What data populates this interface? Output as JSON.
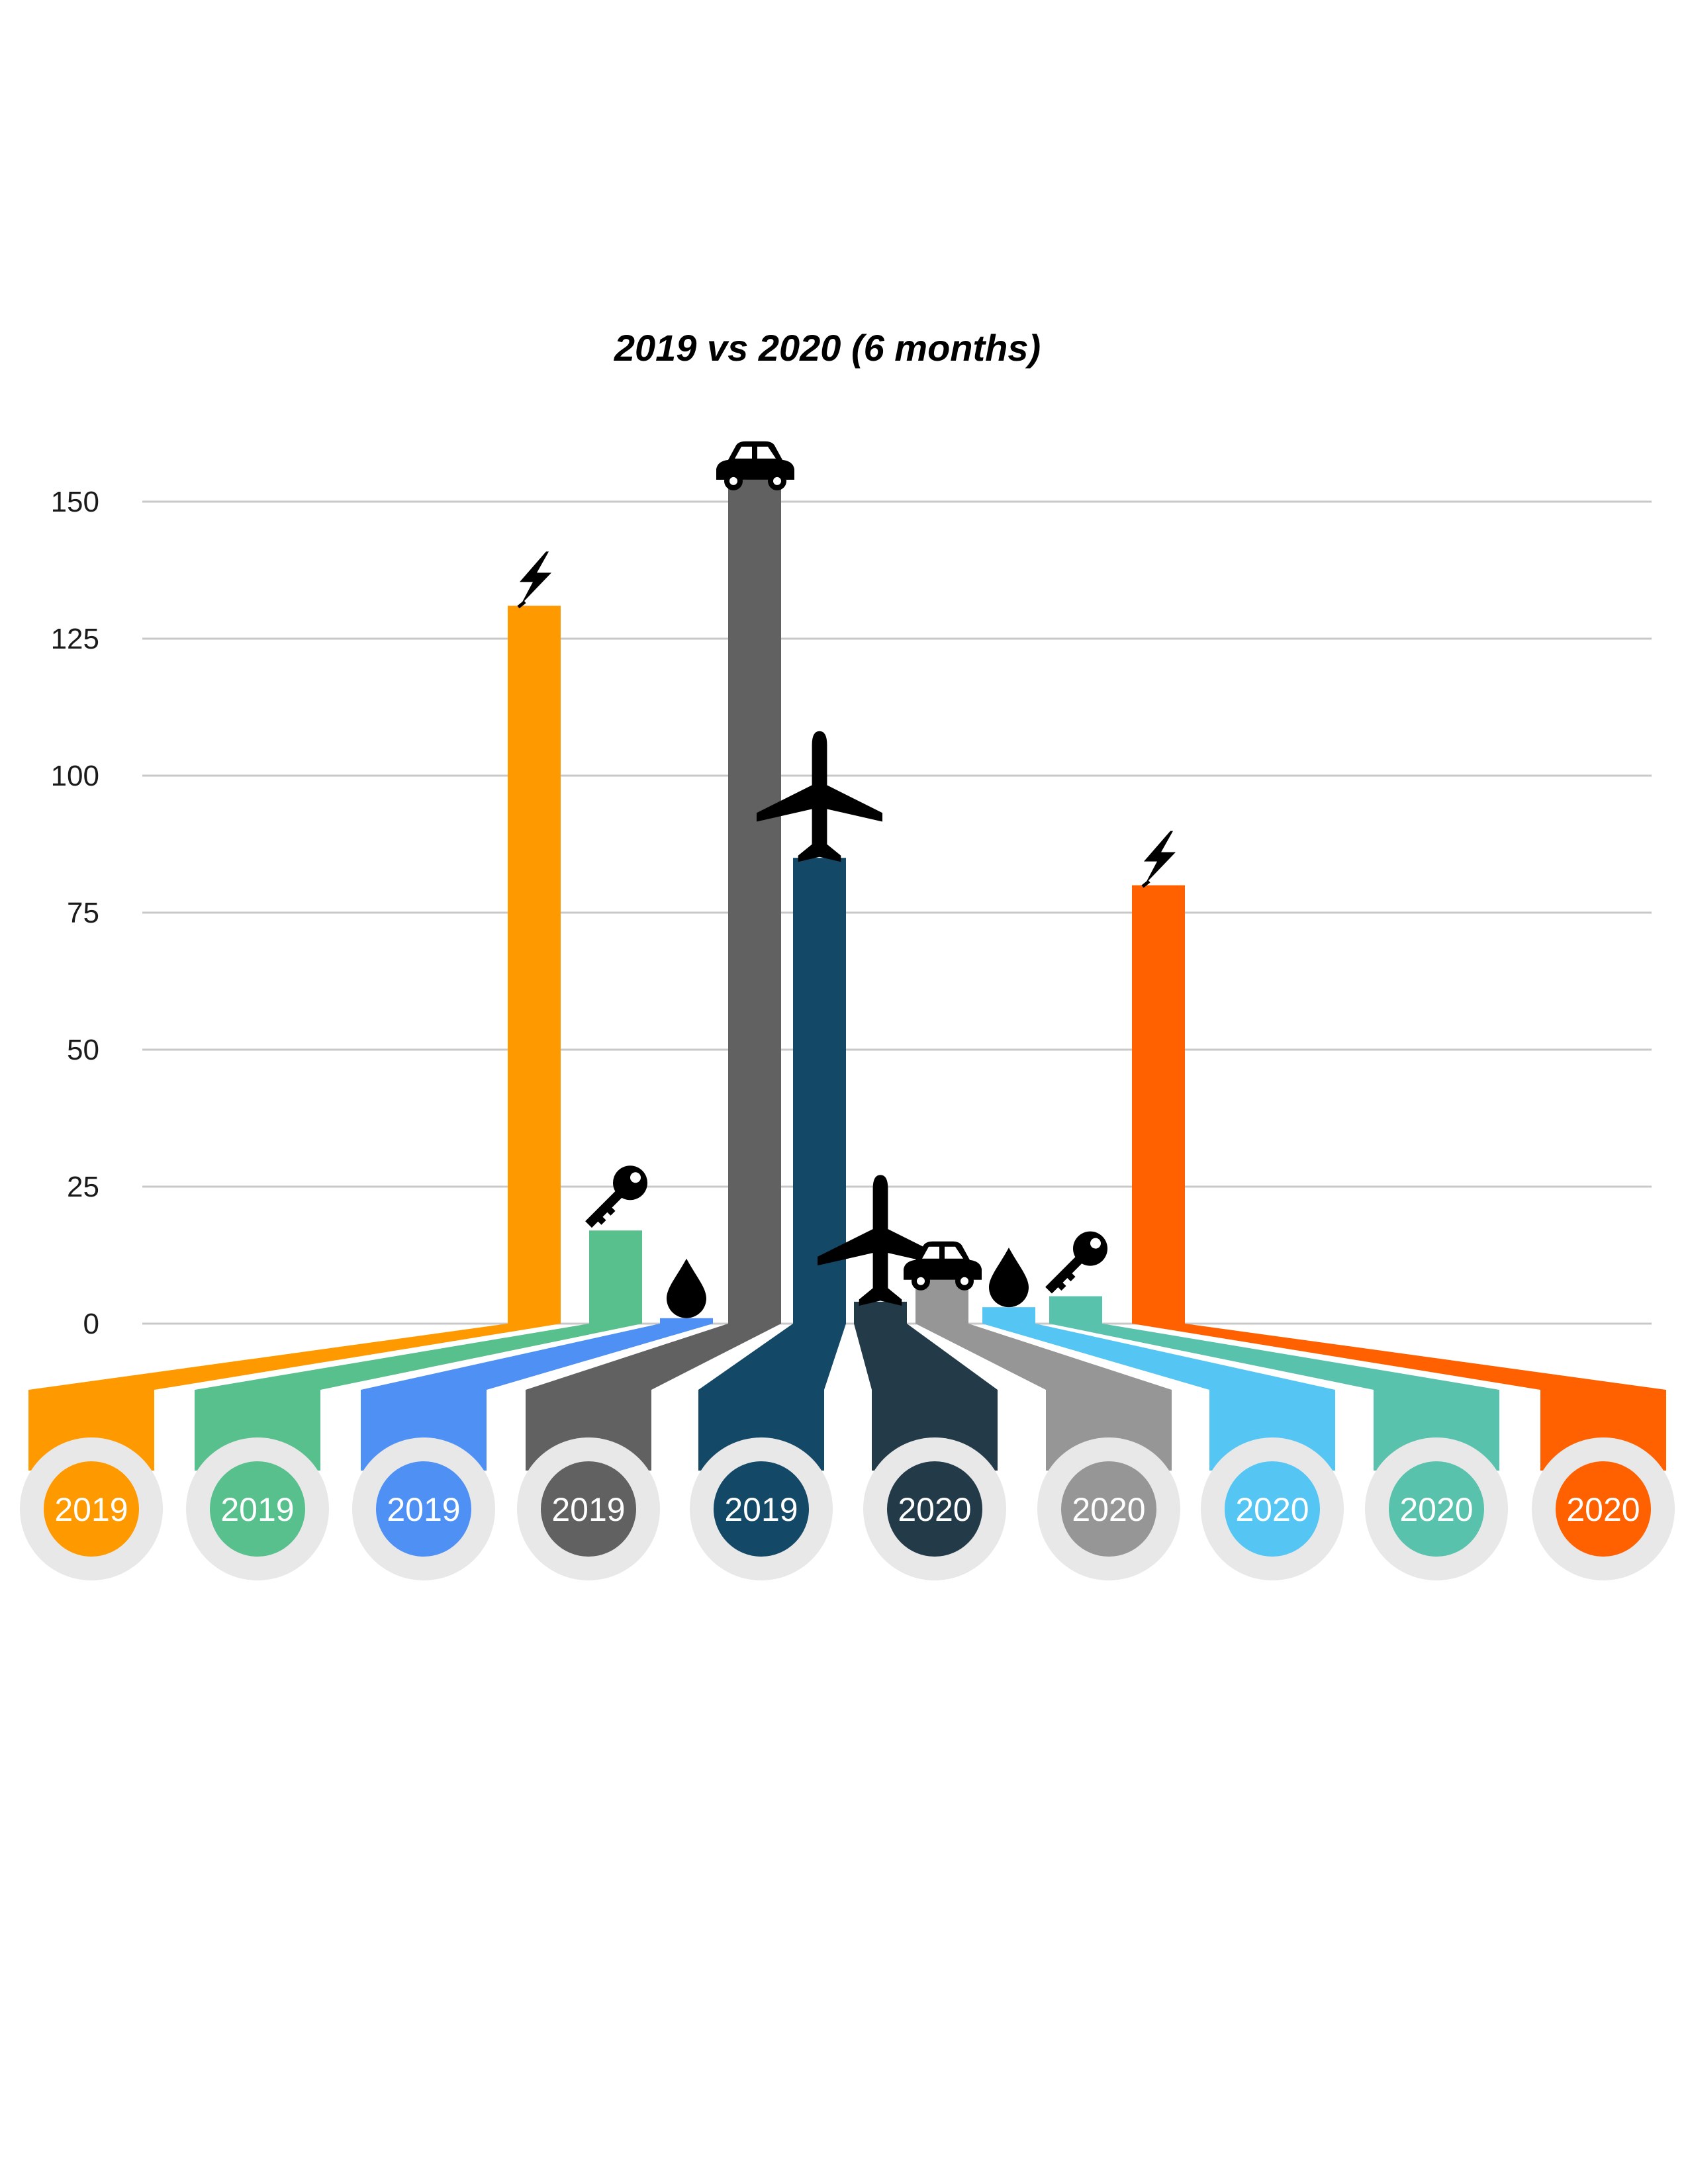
{
  "chart_data": {
    "type": "bar",
    "title": "2019 vs 2020 (6 months)",
    "xlabel": "",
    "ylabel": "",
    "ylim": [
      0,
      150
    ],
    "yticks": [
      0,
      25,
      50,
      75,
      100,
      125,
      150
    ],
    "grid": true,
    "categories": [
      "2019",
      "2019",
      "2019",
      "2019",
      "2019",
      "2020",
      "2020",
      "2020",
      "2020",
      "2020"
    ],
    "values": [
      131,
      17,
      1,
      154,
      85,
      4,
      8,
      3,
      5,
      80
    ],
    "icons": [
      "lightning-icon",
      "key-icon",
      "drop-icon",
      "car-icon",
      "airplane-icon",
      "airplane-icon",
      "car-icon",
      "drop-icon",
      "key-icon",
      "lightning-icon"
    ],
    "colors": [
      "#ff9900",
      "#57c08c",
      "#4f90f5",
      "#616161",
      "#134866",
      "#233b48",
      "#969696",
      "#55c6f4",
      "#59c2ac",
      "#ff6000"
    ]
  }
}
